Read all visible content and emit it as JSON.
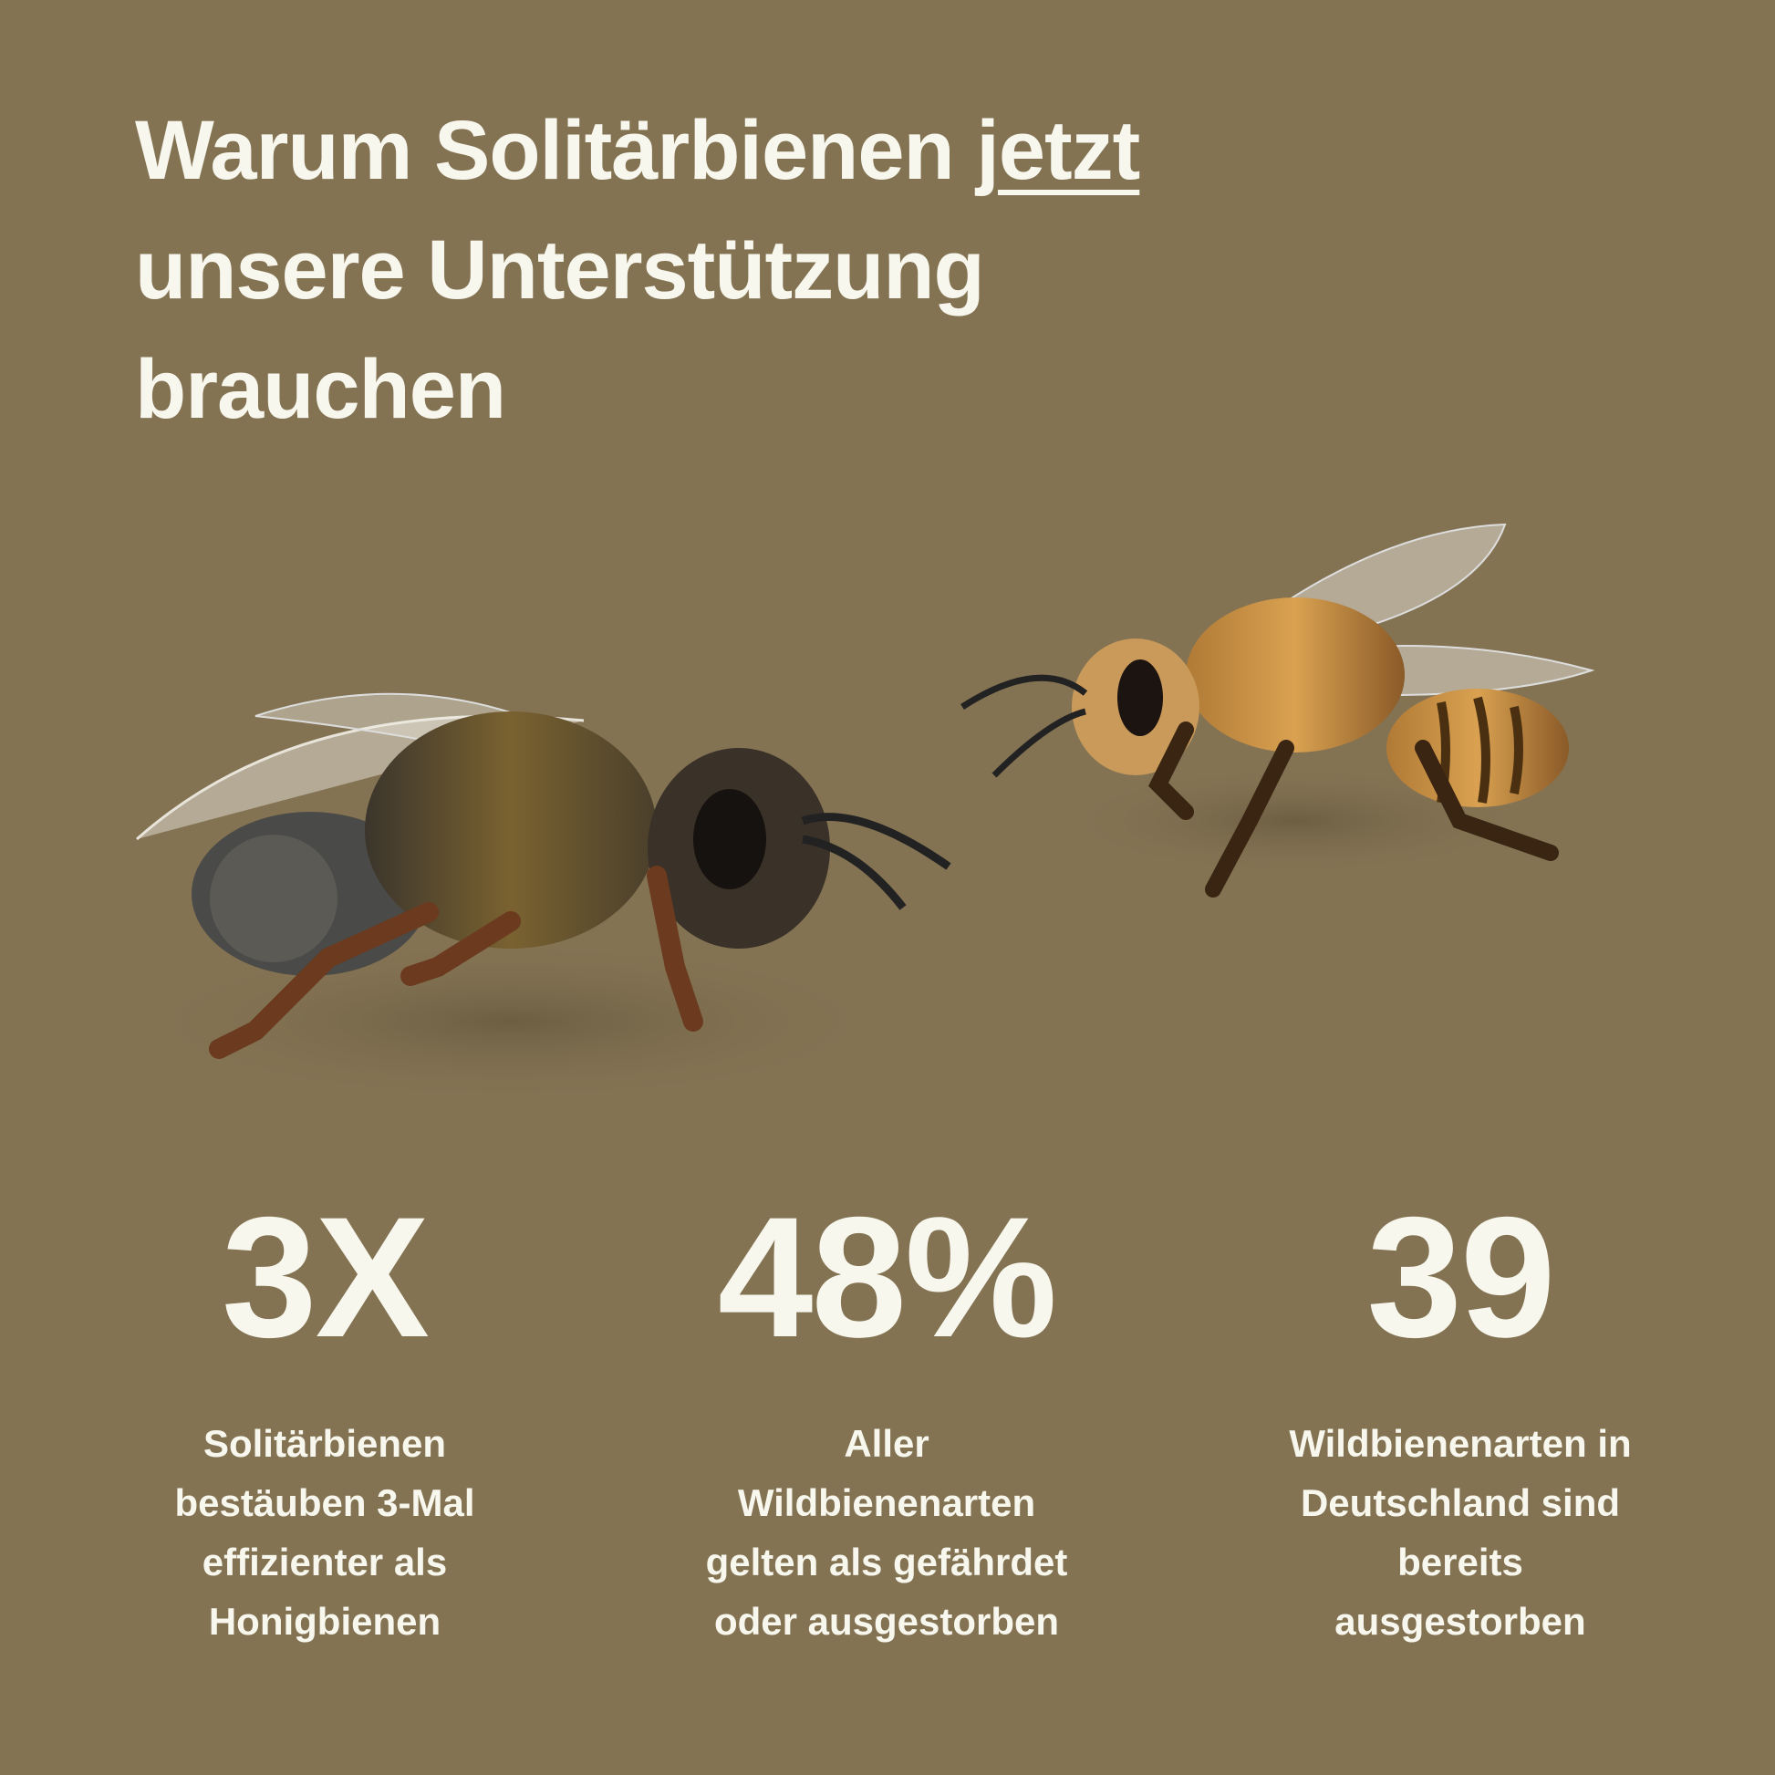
{
  "title": {
    "line1_before": "Warum Solitärbienen ",
    "line1_emphasis": "jetzt",
    "line2": "unsere Unterstützung",
    "line3": "brauchen"
  },
  "colors": {
    "background": "#837353",
    "text": "#f8f7ee"
  },
  "illustration": {
    "icons": [
      "bee-icon",
      "bee-icon"
    ]
  },
  "stats": [
    {
      "value": "3X",
      "description": [
        "Solitärbienen",
        "bestäuben 3-Mal",
        "effizienter als",
        "Honigbienen"
      ]
    },
    {
      "value": "48%",
      "description": [
        "Aller",
        "Wildbienenarten",
        "gelten als gefährdet",
        "oder ausgestorben"
      ]
    },
    {
      "value": "39",
      "description": [
        "Wildbienenarten in",
        "Deutschland sind",
        "bereits",
        "ausgestorben"
      ]
    }
  ]
}
